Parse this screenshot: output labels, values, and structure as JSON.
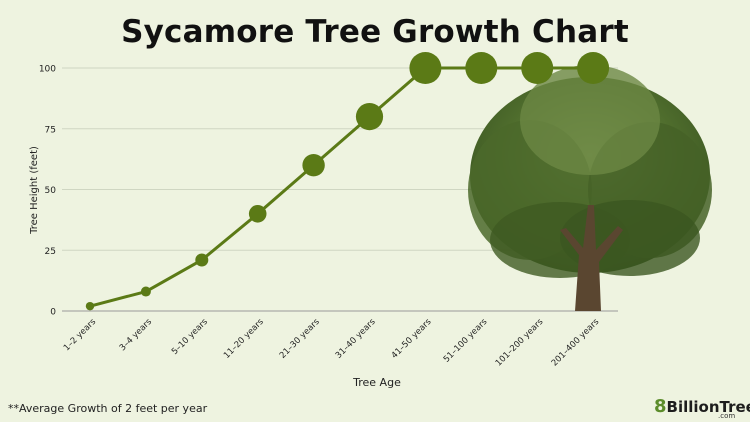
{
  "chart_data": {
    "type": "line",
    "title": "Sycamore Tree Growth Chart",
    "xlabel": "Tree Age",
    "ylabel": "Tree Height (feet)",
    "categories": [
      "1–2 years",
      "3–4 years",
      "5–10 years",
      "11–20 years",
      "21–30 years",
      "31–40 years",
      "41–50 years",
      "51–100 years",
      "101–200 years",
      "201–400 years"
    ],
    "values": [
      2,
      8,
      21,
      40,
      60,
      80,
      100,
      100,
      100,
      100
    ],
    "ylim": [
      0,
      100
    ],
    "yticks": [
      0,
      25,
      50,
      75,
      100
    ],
    "grid": true,
    "line_color": "#5b7a16"
  },
  "footnote": "**Average Growth of 2 feet per year",
  "brand": {
    "mark": "8",
    "name": "BillionTrees",
    "suffix": ".com"
  }
}
